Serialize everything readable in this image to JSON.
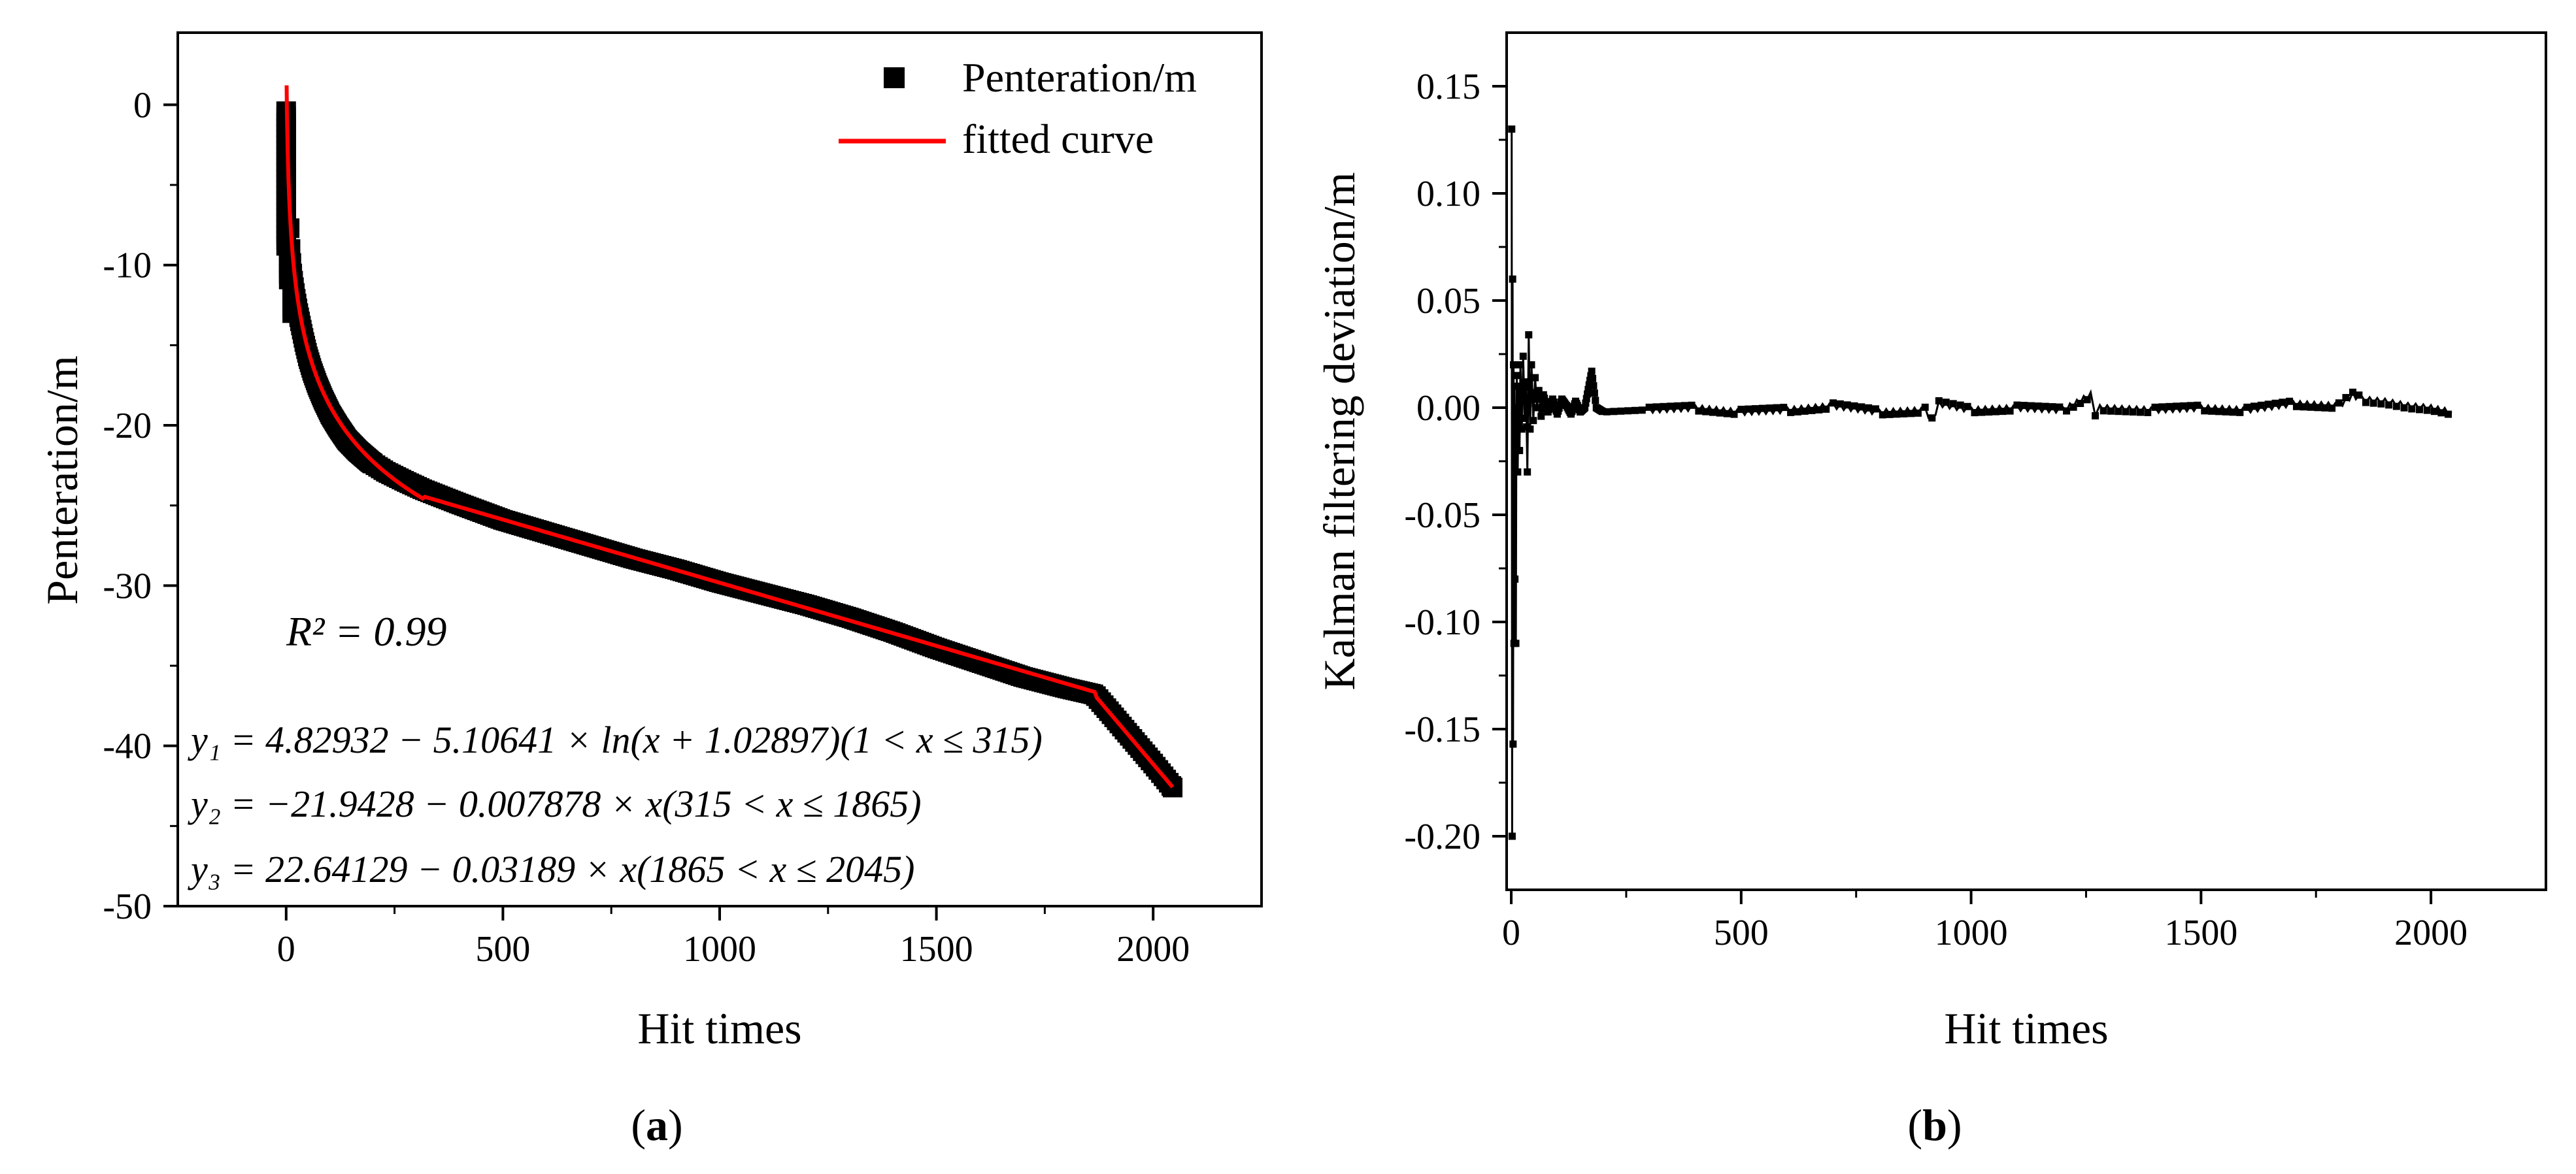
{
  "chart_data": [
    {
      "panel": "(a)",
      "type": "scatter",
      "xlabel": "Hit times",
      "ylabel": "Penteration/m",
      "xlim": [
        -250,
        2250
      ],
      "ylim": [
        -50,
        4.5
      ],
      "xticks": [
        0,
        500,
        1000,
        1500,
        2000
      ],
      "yticks": [
        0,
        -10,
        -20,
        -30,
        -40,
        -50
      ],
      "xtick_labels": [
        "0",
        "500",
        "1000",
        "1500",
        "2000"
      ],
      "ytick_labels": [
        "0",
        "-10",
        "-20",
        "-30",
        "-40",
        "-50"
      ],
      "grid": false,
      "legend_position": "top-right",
      "series": [
        {
          "name": "Penteration/m",
          "style": "square markers",
          "color": "#000000",
          "points": [
            [
              0,
              -0.4
            ],
            [
              2,
              -2.5
            ],
            [
              4,
              -4.5
            ],
            [
              6,
              -6.2
            ],
            [
              8,
              -7.7
            ],
            [
              10,
              -9.0
            ],
            [
              13,
              -10.3
            ],
            [
              17,
              -11.2
            ],
            [
              22,
              -12.1
            ],
            [
              28,
              -13.0
            ],
            [
              35,
              -13.9
            ],
            [
              42,
              -14.8
            ],
            [
              50,
              -15.7
            ],
            [
              60,
              -16.6
            ],
            [
              72,
              -17.5
            ],
            [
              86,
              -18.4
            ],
            [
              102,
              -19.3
            ],
            [
              120,
              -20.1
            ],
            [
              140,
              -20.9
            ],
            [
              165,
              -21.6
            ],
            [
              195,
              -22.3
            ],
            [
              230,
              -22.9
            ],
            [
              275,
              -23.5
            ],
            [
              315,
              -24.0
            ],
            [
              400,
              -24.9
            ],
            [
              500,
              -25.9
            ],
            [
              600,
              -26.7
            ],
            [
              700,
              -27.5
            ],
            [
              800,
              -28.3
            ],
            [
              900,
              -29.0
            ],
            [
              1000,
              -29.8
            ],
            [
              1100,
              -30.5
            ],
            [
              1200,
              -31.2
            ],
            [
              1300,
              -32.0
            ],
            [
              1400,
              -32.9
            ],
            [
              1500,
              -33.9
            ],
            [
              1600,
              -34.8
            ],
            [
              1700,
              -35.7
            ],
            [
              1800,
              -36.4
            ],
            [
              1865,
              -36.8
            ],
            [
              1900,
              -37.9
            ],
            [
              1950,
              -39.5
            ],
            [
              2000,
              -41.1
            ],
            [
              2045,
              -42.6
            ]
          ]
        },
        {
          "name": "fitted curve",
          "style": "line",
          "color": "#ff0000",
          "segments": [
            {
              "equation": "y1 = 4.82932 - 5.10641 ln(x + 1.02897)",
              "x_start": 1,
              "x_end": 315
            },
            {
              "equation": "y2 = -21.9428 - 0.007878 x",
              "x_start": 315,
              "x_end": 1865
            },
            {
              "equation": "y3 = 22.64129 - 0.03189 x",
              "x_start": 1865,
              "x_end": 2045
            }
          ]
        }
      ],
      "annotations": {
        "r2_label": "R² = 0.99",
        "eq1": "y₁ = 4.82932 − 5.10641 × ln(x + 1.02897)(1 < x ≤ 315)",
        "eq2": "y₂ = −21.9428 − 0.007878 × x(315 < x ≤ 1865)",
        "eq3": "y₃ = 22.64129 − 0.03189 × x(1865 < x ≤ 2045)"
      },
      "caption_letter": "a"
    },
    {
      "panel": "(b)",
      "type": "line",
      "xlabel": "Hit times",
      "ylabel": "Kalman filtering deviation/m",
      "xlim": [
        -10,
        2250
      ],
      "ylim": [
        -0.225,
        0.175
      ],
      "xticks": [
        0,
        500,
        1000,
        1500,
        2000
      ],
      "yticks": [
        0.15,
        0.1,
        0.05,
        0.0,
        -0.05,
        -0.1,
        -0.15,
        -0.2
      ],
      "xtick_labels": [
        "0",
        "500",
        "1000",
        "1500",
        "2000"
      ],
      "ytick_labels": [
        "0.15",
        "0.10",
        "0.05",
        "0.00",
        "-0.05",
        "-0.10",
        "-0.15",
        "-0.20"
      ],
      "grid": false,
      "series": [
        {
          "name": "Kalman filtering deviation",
          "style": "line with small square markers",
          "color": "#000000",
          "points": [
            [
              1,
              0.13
            ],
            [
              2,
              -0.2
            ],
            [
              3,
              0.06
            ],
            [
              4,
              -0.157
            ],
            [
              5,
              0.02
            ],
            [
              6,
              -0.11
            ],
            [
              7,
              0.01
            ],
            [
              8,
              -0.08
            ],
            [
              9,
              0.0
            ],
            [
              10,
              -0.11
            ],
            [
              11,
              -0.02
            ],
            [
              12,
              0.015
            ],
            [
              14,
              -0.03
            ],
            [
              16,
              0.01
            ],
            [
              18,
              -0.02
            ],
            [
              20,
              0.02
            ],
            [
              23,
              -0.01
            ],
            [
              26,
              0.024
            ],
            [
              29,
              -0.005
            ],
            [
              32,
              0.012
            ],
            [
              35,
              -0.03
            ],
            [
              38,
              0.034
            ],
            [
              41,
              -0.01
            ],
            [
              44,
              0.02
            ],
            [
              48,
              -0.006
            ],
            [
              52,
              0.014
            ],
            [
              56,
              0.0
            ],
            [
              60,
              0.008
            ],
            [
              65,
              -0.004
            ],
            [
              70,
              0.006
            ],
            [
              80,
              -0.002
            ],
            [
              90,
              0.004
            ],
            [
              100,
              -0.003
            ],
            [
              110,
              0.004
            ],
            [
              120,
              0.001
            ],
            [
              130,
              -0.003
            ],
            [
              140,
              0.003
            ],
            [
              150,
              -0.002
            ],
            [
              160,
              0.0
            ],
            [
              175,
              0.017
            ],
            [
              185,
              0.0
            ],
            [
              200,
              -0.002
            ],
            [
              300,
              -0.001
            ],
            [
              400,
              0.0
            ],
            [
              500,
              -0.002
            ],
            [
              600,
              -0.001
            ],
            [
              700,
              0.001
            ],
            [
              800,
              -0.002
            ],
            [
              900,
              -0.001
            ],
            [
              915,
              -0.006
            ],
            [
              930,
              0.002
            ],
            [
              1000,
              -0.001
            ],
            [
              1100,
              0.0
            ],
            [
              1200,
              -0.001
            ],
            [
              1260,
              0.006
            ],
            [
              1270,
              -0.005
            ],
            [
              1280,
              0.0
            ],
            [
              1400,
              -0.001
            ],
            [
              1500,
              0.0
            ],
            [
              1600,
              -0.001
            ],
            [
              1700,
              0.002
            ],
            [
              1800,
              0.001
            ],
            [
              1830,
              0.006
            ],
            [
              1850,
              0.004
            ],
            [
              1900,
              0.003
            ],
            [
              1950,
              0.001
            ],
            [
              2000,
              0.0
            ],
            [
              2045,
              -0.002
            ]
          ]
        }
      ],
      "caption_letter": "b"
    }
  ]
}
